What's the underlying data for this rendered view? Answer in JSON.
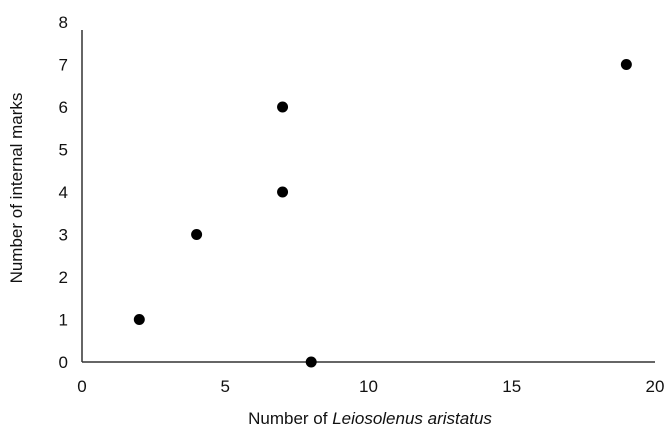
{
  "chart_data": {
    "type": "scatter",
    "title": "",
    "xlabel": {
      "prefix": "Number of ",
      "italic": "Leiosolenus aristatus"
    },
    "ylabel": "Number of internal marks",
    "xlim": [
      0,
      20
    ],
    "ylim": [
      0,
      8
    ],
    "xticks": [
      0,
      5,
      10,
      15,
      20
    ],
    "yticks": [
      0,
      1,
      2,
      3,
      4,
      5,
      6,
      7,
      8
    ],
    "grid": false,
    "legend": "none",
    "marker_color": "#000000",
    "points": [
      {
        "x": 2,
        "y": 1
      },
      {
        "x": 4,
        "y": 3
      },
      {
        "x": 7,
        "y": 6
      },
      {
        "x": 7,
        "y": 4
      },
      {
        "x": 8,
        "y": 0
      },
      {
        "x": 19,
        "y": 7
      }
    ]
  }
}
